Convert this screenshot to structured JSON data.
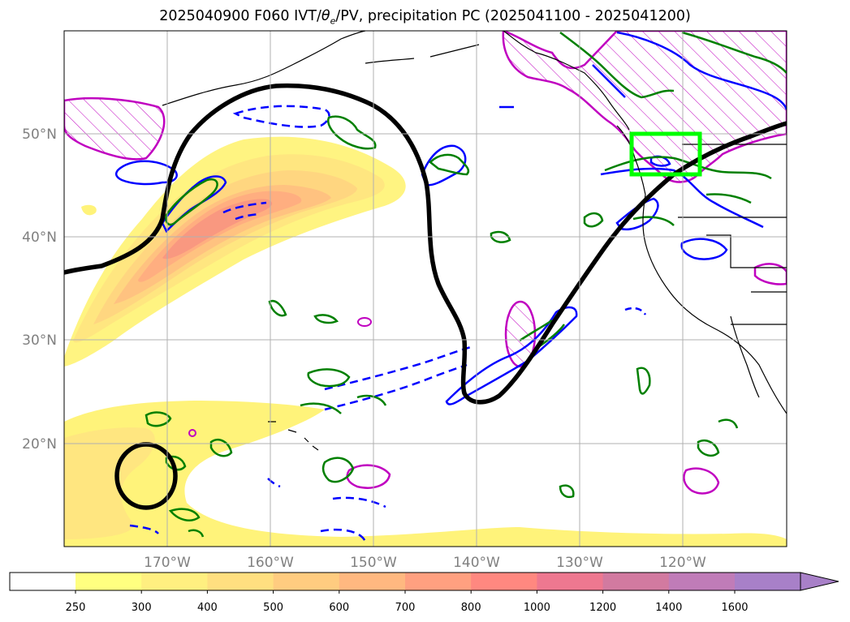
{
  "title": {
    "prefix": "2025040900 F060 IVT/",
    "theta_symbol": "θ",
    "theta_subscript": "e",
    "suffix": "/PV, precipitation PC (2025041100 - 2025041200)"
  },
  "map": {
    "lon_range": [
      -180,
      -110
    ],
    "lat_range": [
      10,
      60
    ],
    "lon_ticks": [
      {
        "lon": -170,
        "label": "170°W"
      },
      {
        "lon": -160,
        "label": "160°W"
      },
      {
        "lon": -150,
        "label": "150°W"
      },
      {
        "lon": -140,
        "label": "140°W"
      },
      {
        "lon": -130,
        "label": "130°W"
      },
      {
        "lon": -120,
        "label": "120°W"
      }
    ],
    "lat_ticks": [
      {
        "lat": 50,
        "label": "50°N"
      },
      {
        "lat": 40,
        "label": "40°N"
      },
      {
        "lat": 30,
        "label": "30°N"
      },
      {
        "lat": 20,
        "label": "20°N"
      }
    ],
    "grid": true,
    "highlight_box": {
      "lon_min": -125,
      "lon_max": -118,
      "lat_min": 46,
      "lat_max": 50,
      "color": "#00ff00"
    },
    "contour_colors": {
      "theta_e": "#0000ff",
      "pv": "#008000",
      "precip_pc": "#c000c0",
      "ivt_line": "#000000"
    }
  },
  "colorbar": {
    "levels": [
      "250",
      "300",
      "400",
      "500",
      "600",
      "700",
      "800",
      "1000",
      "1200",
      "1400",
      "1600"
    ],
    "colors": [
      "#ffff80",
      "#ffef80",
      "#ffdf80",
      "#ffcc80",
      "#ffb880",
      "#ffa080",
      "#ff8880",
      "#ee7890",
      "#d27aa0",
      "#c07cb8",
      "#a880c8"
    ],
    "extend": "max"
  }
}
